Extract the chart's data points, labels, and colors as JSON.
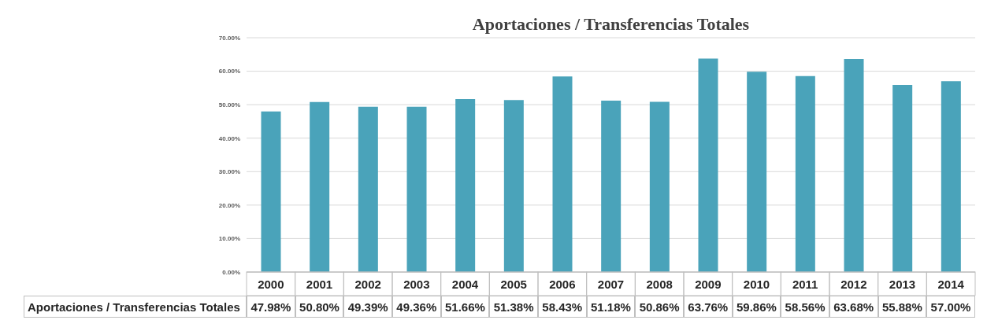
{
  "chart_data": {
    "type": "bar",
    "title": "Aportaciones / Transferencias Totales",
    "categories": [
      "2000",
      "2001",
      "2002",
      "2003",
      "2004",
      "2005",
      "2006",
      "2007",
      "2008",
      "2009",
      "2010",
      "2011",
      "2012",
      "2013",
      "2014"
    ],
    "series": [
      {
        "name": "Aportaciones / Transferencias Totales",
        "color": "#4aa3ba",
        "values": [
          47.98,
          50.8,
          49.39,
          49.36,
          51.66,
          51.38,
          58.43,
          51.18,
          50.86,
          63.76,
          59.86,
          58.56,
          63.68,
          55.88,
          57.0
        ],
        "value_labels": [
          "47.98%",
          "50.80%",
          "49.39%",
          "49.36%",
          "51.66%",
          "51.38%",
          "58.43%",
          "51.18%",
          "50.86%",
          "63.76%",
          "59.86%",
          "58.56%",
          "63.68%",
          "55.88%",
          "57.00%"
        ]
      }
    ],
    "ylim": [
      0,
      70
    ],
    "yticks": [
      {
        "value": 0,
        "label": "0.00%"
      },
      {
        "value": 10,
        "label": "10.00%"
      },
      {
        "value": 20,
        "label": "20.00%"
      },
      {
        "value": 30,
        "label": "30.00%"
      },
      {
        "value": 40,
        "label": "40.00%"
      },
      {
        "value": 50,
        "label": "50.00%"
      },
      {
        "value": 60,
        "label": "60.00%"
      },
      {
        "value": 70,
        "label": "70.00%"
      }
    ],
    "grid": "y",
    "legend": false
  }
}
